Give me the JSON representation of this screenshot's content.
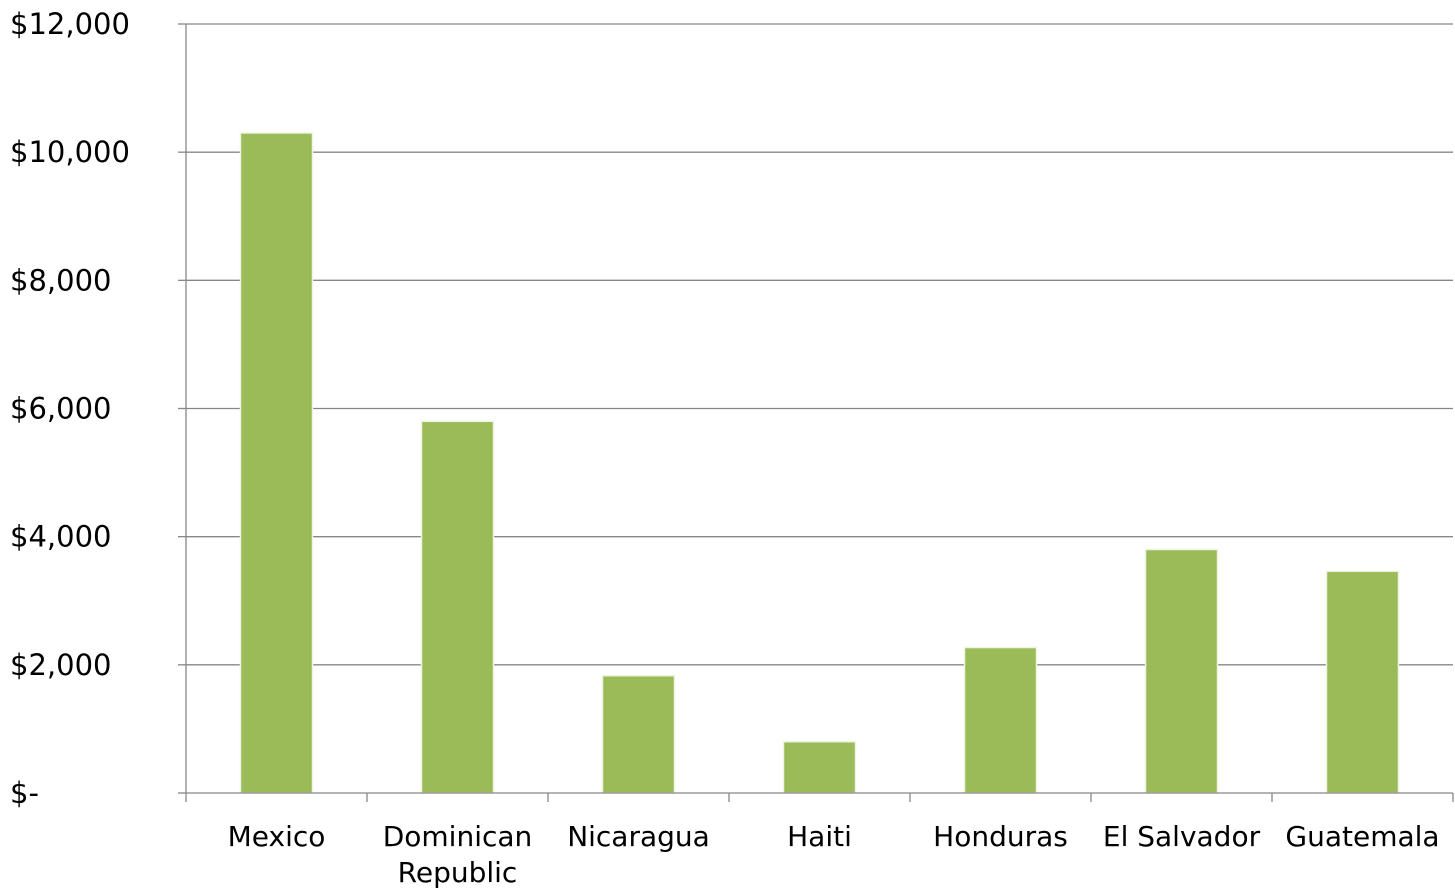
{
  "chart_data": {
    "type": "bar",
    "title": "",
    "xlabel": "",
    "ylabel": "",
    "categories": [
      [
        "Mexico"
      ],
      [
        "Dominican",
        "Republic"
      ],
      [
        "Nicaragua"
      ],
      [
        "Haiti"
      ],
      [
        "Honduras"
      ],
      [
        "El Salvador"
      ],
      [
        "Guatemala"
      ]
    ],
    "values": [
      10300,
      5800,
      1830,
      800,
      2270,
      3800,
      3460
    ],
    "ylim": [
      0,
      12000
    ],
    "yticks": [
      0,
      2000,
      4000,
      6000,
      8000,
      10000,
      12000
    ],
    "ytick_labels": [
      "$-",
      "$2,000",
      "$4,000",
      "$6,000",
      "$8,000",
      "$10,000",
      "$12,000"
    ],
    "grid": true,
    "legend": "none",
    "colors": {
      "bar": "#9bbb59",
      "grid": "#878787",
      "text": "#000000"
    }
  }
}
